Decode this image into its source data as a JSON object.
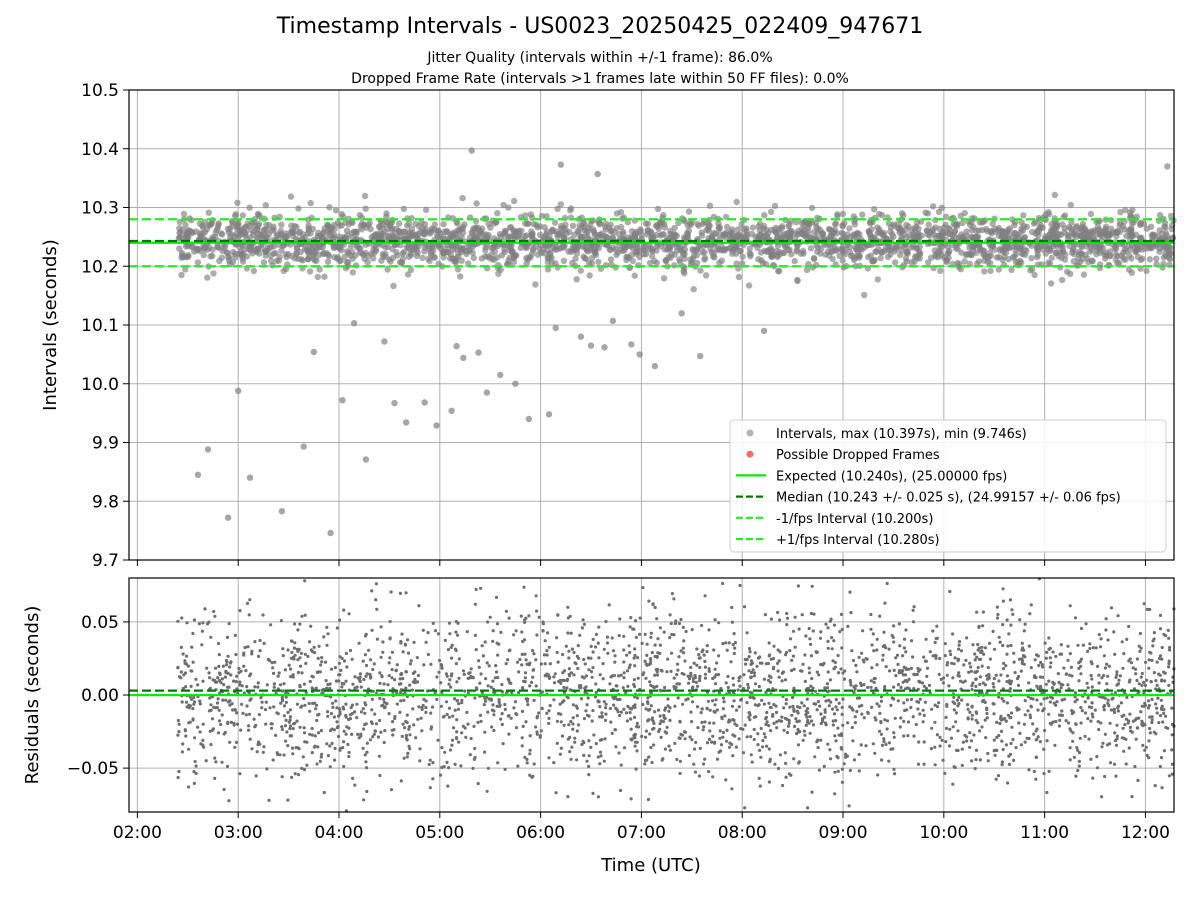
{
  "figure": {
    "title": "Timestamp Intervals - US0023_20250425_022409_947671",
    "subtitle_1": "Jitter Quality (intervals within +/-1 frame): 86.0%",
    "subtitle_2": "Dropped Frame Rate (intervals >1 frames late within 50 FF files): 0.0%"
  },
  "colors": {
    "points": "#808080",
    "dropped": "#ff4d4d",
    "expected": "#00ee00",
    "median": "#007700",
    "interval_lines": "#22ee22",
    "grid": "#b0b0b0"
  },
  "chart_data": [
    {
      "type": "scatter",
      "panel": "top",
      "xlabel": "",
      "ylabel": "Intervals (seconds)",
      "x_type": "time",
      "x_start": "02:24",
      "x_end": "12:17",
      "point_count": 2600,
      "xlim": [
        "01:55",
        "12:17"
      ],
      "ylim": [
        9.7,
        10.5
      ],
      "yticks": [
        "9.7",
        "9.8",
        "9.9",
        "10.0",
        "10.1",
        "10.2",
        "10.3",
        "10.4",
        "10.5"
      ],
      "grid": true,
      "legend_position": "lower right",
      "legend": [
        {
          "label": "Intervals, max (10.397s), min (9.746s)",
          "kind": "marker",
          "color": "#808080"
        },
        {
          "label": "Possible Dropped Frames",
          "kind": "marker",
          "color": "#ff4d4d"
        },
        {
          "label": "Expected (10.240s), (25.00000 fps)",
          "kind": "solid",
          "color": "#00ee00"
        },
        {
          "label": "Median (10.243 +/- 0.025 s), (24.99157 +/- 0.06 fps)",
          "kind": "dashed",
          "color": "#007700"
        },
        {
          "label": "-1/fps Interval (10.200s)",
          "kind": "dashed",
          "color": "#22ee22"
        },
        {
          "label": "+1/fps Interval (10.280s)",
          "kind": "dashed",
          "color": "#22ee22"
        }
      ],
      "reference_lines": [
        {
          "name": "Expected",
          "y": 10.24,
          "style": "solid",
          "color": "#00ee00"
        },
        {
          "name": "Median",
          "y": 10.243,
          "style": "dashed",
          "color": "#007700"
        },
        {
          "name": "-1/fps Interval",
          "y": 10.2,
          "style": "dashed",
          "color": "#22ee22"
        },
        {
          "name": "+1/fps Interval",
          "y": 10.28,
          "style": "dashed",
          "color": "#22ee22"
        }
      ],
      "typical_range": [
        10.15,
        10.33
      ],
      "max": 10.397,
      "min": 9.746,
      "outliers": [
        [
          "02:36",
          9.845
        ],
        [
          "02:42",
          9.888
        ],
        [
          "02:54",
          9.772
        ],
        [
          "03:00",
          9.988
        ],
        [
          "03:07",
          9.84
        ],
        [
          "03:26",
          9.783
        ],
        [
          "03:39",
          9.893
        ],
        [
          "03:45",
          10.054
        ],
        [
          "03:55",
          9.746
        ],
        [
          "04:02",
          9.972
        ],
        [
          "04:09",
          10.103
        ],
        [
          "04:16",
          9.871
        ],
        [
          "04:27",
          10.072
        ],
        [
          "04:33",
          9.967
        ],
        [
          "04:40",
          9.934
        ],
        [
          "04:51",
          9.968
        ],
        [
          "04:58",
          9.929
        ],
        [
          "05:07",
          9.954
        ],
        [
          "05:10",
          10.064
        ],
        [
          "05:14",
          10.044
        ],
        [
          "05:23",
          10.053
        ],
        [
          "05:28",
          9.985
        ],
        [
          "05:36",
          10.015
        ],
        [
          "05:45",
          10.0
        ],
        [
          "05:53",
          9.94
        ],
        [
          "06:05",
          9.948
        ],
        [
          "06:09",
          10.095
        ],
        [
          "06:24",
          10.08
        ],
        [
          "06:30",
          10.065
        ],
        [
          "06:38",
          10.062
        ],
        [
          "06:43",
          10.107
        ],
        [
          "06:54",
          10.067
        ],
        [
          "06:59",
          10.05
        ],
        [
          "07:08",
          10.03
        ],
        [
          "07:24",
          10.12
        ],
        [
          "07:35",
          10.047
        ],
        [
          "08:13",
          10.09
        ],
        [
          "05:19",
          10.397
        ],
        [
          "06:12",
          10.373
        ],
        [
          "06:34",
          10.357
        ],
        [
          "12:13",
          10.37
        ]
      ]
    },
    {
      "type": "scatter",
      "panel": "bottom",
      "xlabel": "Time (UTC)",
      "ylabel": "Residuals (seconds)",
      "x_type": "time",
      "x_start": "02:24",
      "x_end": "12:17",
      "point_count": 3000,
      "xlim": [
        "01:55",
        "12:17"
      ],
      "ylim": [
        -0.08,
        0.08
      ],
      "yticks": [
        "−0.05",
        "0.00",
        "0.05"
      ],
      "xticks": [
        "02:00",
        "03:00",
        "04:00",
        "05:00",
        "06:00",
        "07:00",
        "08:00",
        "09:00",
        "10:00",
        "11:00",
        "12:00"
      ],
      "grid": true,
      "reference_lines": [
        {
          "name": "Expected",
          "y": 0.0,
          "style": "solid",
          "color": "#00ee00"
        },
        {
          "name": "Median",
          "y": 0.003,
          "style": "dashed",
          "color": "#007700"
        }
      ],
      "residual_std": 0.032
    }
  ]
}
